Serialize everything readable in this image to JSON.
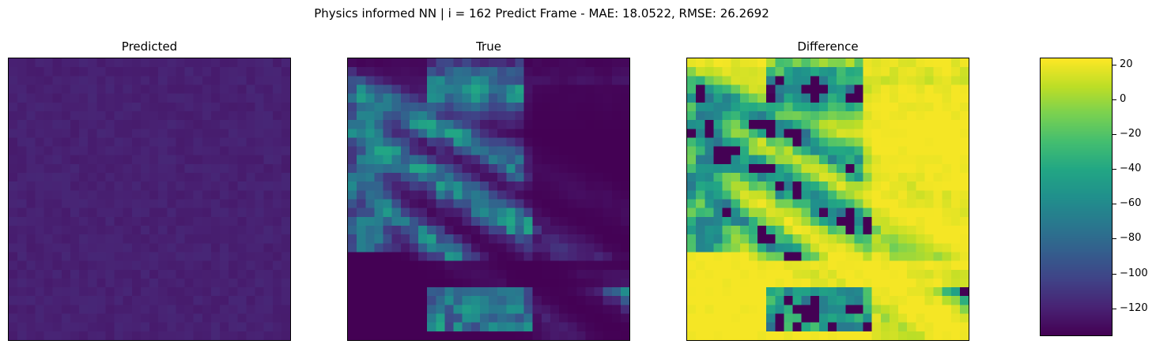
{
  "chart_data": {
    "title": "Physics informed NN | i = 162 Predict Frame - MAE: 18.0522, RMSE: 26.2692",
    "type": "heatmap",
    "colormap": "viridis",
    "grid_size": [
      32,
      32
    ],
    "panels": [
      {
        "title": "Predicted",
        "description_level": "uniform low values near -120"
      },
      {
        "title": "True",
        "description_level": "diagonal bands of higher values on dark background"
      },
      {
        "title": "Difference",
        "description_level": "mostly yellow near 0-20 with teal/blue streaks"
      }
    ],
    "colorbar": {
      "vmin": -136,
      "vmax": 24,
      "ticks": [
        20,
        0,
        -20,
        -40,
        -60,
        -80,
        -100,
        -120
      ],
      "tick_labels": [
        "20",
        "0",
        "−20",
        "−40",
        "−60",
        "−80",
        "−100",
        "−120"
      ]
    },
    "grid": false,
    "legend": "none"
  }
}
